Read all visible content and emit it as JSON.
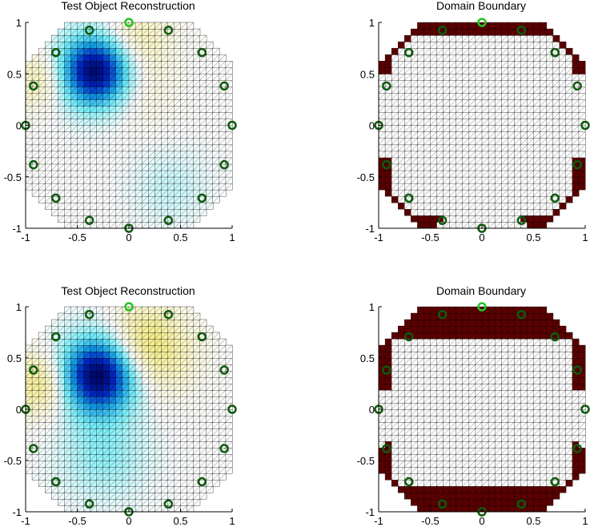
{
  "figure": {
    "panels": [
      {
        "id": "top-left",
        "kind": "reconstruction",
        "title": "Test Object Reconstruction",
        "xticks": [
          "-1",
          "-0.5",
          "0",
          "0.5",
          "1"
        ],
        "yticks": [
          "1",
          "0.5",
          "0",
          "-0.5",
          "-1"
        ],
        "blobs": [
          {
            "cx": -0.32,
            "cy": 0.53,
            "r": 0.34,
            "amp": -1.0
          },
          {
            "cx": -0.85,
            "cy": 0.45,
            "r": 0.28,
            "amp": 0.22
          },
          {
            "cx": 0.05,
            "cy": 0.85,
            "r": 0.35,
            "amp": 0.22
          },
          {
            "cx": 0.05,
            "cy": 0.35,
            "r": 0.35,
            "amp": 0.12
          },
          {
            "cx": 0.4,
            "cy": -0.6,
            "r": 0.35,
            "amp": -0.1
          }
        ],
        "highlight_electrode": 0
      },
      {
        "id": "top-right",
        "kind": "boundary",
        "title": "Domain Boundary",
        "xticks": [
          "-1",
          "-0.5",
          "0",
          "0.5",
          "1"
        ],
        "yticks": [
          "1",
          "0.5",
          "0",
          "-0.5",
          "-1"
        ],
        "boundary_bands": [
          {
            "from_deg": 28,
            "to_deg": 152
          },
          {
            "from_deg": 198,
            "to_deg": 247
          },
          {
            "from_deg": 293,
            "to_deg": 342
          }
        ],
        "highlight_electrode": 0
      },
      {
        "id": "bottom-left",
        "kind": "reconstruction",
        "title": "Test Object Reconstruction",
        "xticks": [
          "-1",
          "-0.5",
          "0",
          "0.5",
          "1"
        ],
        "yticks": [
          "1",
          "0.5",
          "0",
          "-0.5",
          "-1"
        ],
        "blobs": [
          {
            "cx": -0.3,
            "cy": 0.33,
            "r": 0.36,
            "amp": -1.0
          },
          {
            "cx": -0.85,
            "cy": 0.25,
            "r": 0.3,
            "amp": 0.35
          },
          {
            "cx": 0.25,
            "cy": 0.55,
            "r": 0.38,
            "amp": 0.3
          },
          {
            "cx": -0.25,
            "cy": -0.45,
            "r": 0.4,
            "amp": -0.2
          },
          {
            "cx": 0.1,
            "cy": 0.75,
            "r": 0.3,
            "amp": 0.15
          }
        ],
        "highlight_electrode": 0
      },
      {
        "id": "bottom-right",
        "kind": "boundary",
        "title": "Domain Boundary",
        "xticks": [
          "-1",
          "-0.5",
          "0",
          "0.5",
          "1"
        ],
        "yticks": [
          "1",
          "0.5",
          "0",
          "-0.5",
          "-1"
        ],
        "boundary_bands": [
          {
            "from_deg": 12,
            "to_deg": 168
          },
          {
            "from_deg": 200,
            "to_deg": 340
          }
        ],
        "thick_caps": [
          {
            "side": "top",
            "y_from": 0.68
          },
          {
            "side": "bottom",
            "y_to": -0.72
          }
        ],
        "highlight_electrode": 0
      }
    ],
    "electrode_count": 16,
    "colors": {
      "mesh_edge": "#000000",
      "mesh_fill": "#ffffff",
      "boundary_fill": "#5c0000",
      "electrode_ring": "#0f5a0f",
      "electrode_highlight": "#22c422",
      "axis": "#000000"
    }
  }
}
